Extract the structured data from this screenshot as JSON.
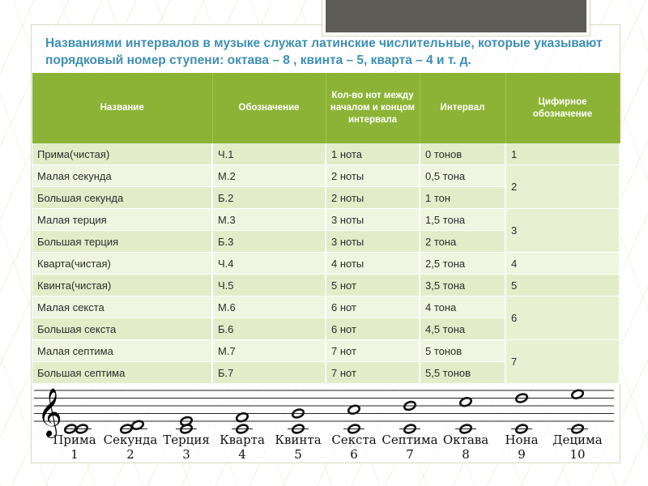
{
  "title": "Названиями интервалов в музыке служат латинские числительные, которые указывают порядковый номер ступени: октава – 8 , квинта – 5, кварта – 4 и т. д.",
  "table": {
    "headers": [
      "Название",
      "Обозначение",
      "Кол-во нот между началом и концом интервала",
      "Интервал",
      "Цифирное обозначение"
    ],
    "rows": [
      {
        "name": "Прима(чистая)",
        "code": "Ч.1",
        "notes": "1 нота",
        "interval": "0 тонов"
      },
      {
        "name": "Малая секунда",
        "code": "М.2",
        "notes": "2 ноты",
        "interval": "0,5 тона"
      },
      {
        "name": "Большая секунда",
        "code": "Б.2",
        "notes": "2 ноты",
        "interval": "1 тон"
      },
      {
        "name": "Малая терция",
        "code": "М.3",
        "notes": "3 ноты",
        "interval": "1,5 тона"
      },
      {
        "name": "Большая терция",
        "code": "Б.3",
        "notes": "3 ноты",
        "interval": "2 тона"
      },
      {
        "name": "Кварта(чистая)",
        "code": "Ч.4",
        "notes": "4 ноты",
        "interval": "2,5 тона"
      },
      {
        "name": "Квинта(чистая)",
        "code": "Ч.5",
        "notes": "5 нот",
        "interval": "3,5 тона"
      },
      {
        "name": "Малая секста",
        "code": "М.6",
        "notes": "6 нот",
        "interval": "4 тона"
      },
      {
        "name": "Большая секста",
        "code": "Б.6",
        "notes": "6 нот",
        "interval": "4,5 тона"
      },
      {
        "name": "Малая септима",
        "code": "М.7",
        "notes": "7 нот",
        "interval": "5 тонов"
      },
      {
        "name": "Большая септима",
        "code": "Б.7",
        "notes": "7 нот",
        "interval": "5,5 тонов"
      }
    ],
    "digit_groups": [
      {
        "label": "1",
        "rowspan": 1
      },
      {
        "label": "2",
        "rowspan": 2
      },
      {
        "label": "3",
        "rowspan": 2
      },
      {
        "label": "4",
        "rowspan": 1
      },
      {
        "label": "5",
        "rowspan": 1
      },
      {
        "label": "6",
        "rowspan": 2
      },
      {
        "label": "7",
        "rowspan": 2
      }
    ]
  },
  "staff": {
    "clef": "𝄞",
    "intervals": [
      {
        "name": "Прима",
        "number": "1",
        "step": 0
      },
      {
        "name": "Секунда",
        "number": "2",
        "step": 1
      },
      {
        "name": "Терция",
        "number": "3",
        "step": 2
      },
      {
        "name": "Кварта",
        "number": "4",
        "step": 3
      },
      {
        "name": "Квинта",
        "number": "5",
        "step": 4
      },
      {
        "name": "Секста",
        "number": "6",
        "step": 5
      },
      {
        "name": "Септима",
        "number": "7",
        "step": 6
      },
      {
        "name": "Октава",
        "number": "8",
        "step": 7
      },
      {
        "name": "Нона",
        "number": "9",
        "step": 8
      },
      {
        "name": "Децима",
        "number": "10",
        "step": 9
      }
    ]
  }
}
